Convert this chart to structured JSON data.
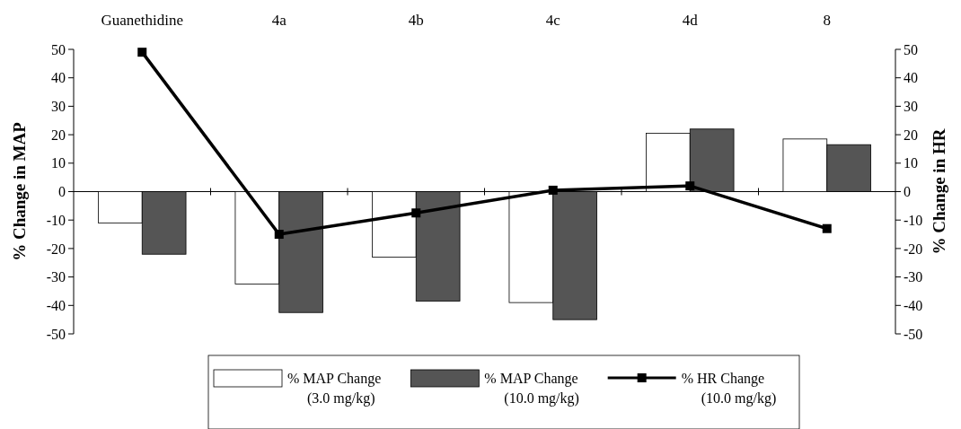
{
  "chart_data": {
    "type": "bar",
    "categories": [
      "Guanethidine",
      "4a",
      "4b",
      "4c",
      "4d",
      "8"
    ],
    "ylabel": "% Change in MAP",
    "y2label": "% Change in HR",
    "ylim": [
      -50,
      50
    ],
    "yticks": [
      50,
      40,
      30,
      20,
      10,
      0,
      -10,
      -20,
      -30,
      -40,
      -50
    ],
    "y2lim": [
      -50,
      50
    ],
    "y2ticks": [
      50,
      40,
      30,
      20,
      10,
      0,
      -10,
      -20,
      -30,
      -40,
      -50
    ],
    "legend": "bottom",
    "marker": "square",
    "series": [
      {
        "name": "% MAP Change\n(3.0 mg/kg)",
        "color": "#ffffff",
        "values": [
          -11,
          -32.5,
          -23,
          -39,
          20.5,
          18.5
        ]
      },
      {
        "name": "% MAP Change\n(10.0 mg/kg)",
        "color": "#555555",
        "values": [
          -22,
          -42.5,
          -38.5,
          -45,
          22,
          16.5
        ]
      },
      {
        "name": "% HR Change\n(10.0 mg/kg)",
        "type": "line",
        "axis": "y2",
        "color": "#000000",
        "values": [
          49,
          -15,
          -7.5,
          0.5,
          2,
          -13
        ]
      }
    ]
  }
}
